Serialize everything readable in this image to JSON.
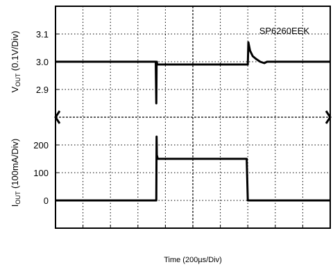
{
  "chart_data": [
    {
      "panel": "top",
      "type": "line",
      "ylabel_main": "V",
      "ylabel_sub": "OUT",
      "ylabel_rest": " (0.1V/Div)",
      "yticks": [
        "3.1",
        "3.0",
        "2.9"
      ],
      "ylim": [
        2.8,
        3.2
      ],
      "annotation": "SP6260EEK",
      "series": [
        {
          "x": [
            0,
            365,
            367,
            368,
            369,
            370,
            372,
            700,
            702,
            704,
            708,
            718,
            730,
            745,
            760,
            770,
            800,
            1000
          ],
          "y": [
            3.0,
            3.0,
            2.85,
            2.99,
            3.0,
            2.99,
            2.99,
            2.99,
            3.07,
            3.06,
            3.04,
            3.02,
            3.01,
            3.0,
            2.995,
            3.0,
            3.0,
            3.0
          ]
        }
      ]
    },
    {
      "panel": "bottom",
      "type": "line",
      "ylabel_main": "I",
      "ylabel_sub": "OUT",
      "ylabel_rest": " (100mA/Div)",
      "yticks": [
        "200",
        "100",
        "0"
      ],
      "ylim": [
        -100,
        300
      ],
      "series": [
        {
          "x": [
            0,
            367,
            368,
            369,
            370,
            372,
            695,
            696,
            700,
            702,
            1000
          ],
          "y": [
            0,
            0,
            230,
            150,
            160,
            150,
            150,
            150,
            0,
            0,
            0
          ]
        }
      ]
    }
  ],
  "x_axis": {
    "label": "Time (200µs/Div)",
    "xlim": [
      0,
      1000
    ],
    "divisions": 10
  }
}
